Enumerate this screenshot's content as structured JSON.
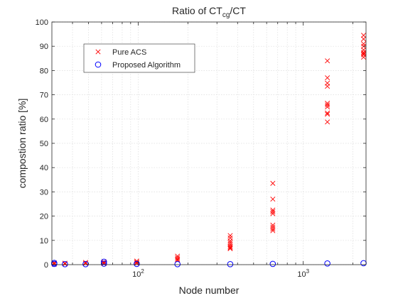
{
  "chart_data": {
    "type": "scatter",
    "title": "Ratio of CT",
    "title_sub": "cg",
    "title_tail": "/CT",
    "xlabel": "Node number",
    "ylabel": "compostion ratio [%]",
    "x_scale": "log",
    "xlim": [
      30,
      2400
    ],
    "ylim": [
      0,
      100
    ],
    "grid": true,
    "minor_grid": true,
    "legend_position": "upper-left",
    "y_ticks": [
      0,
      10,
      20,
      30,
      40,
      50,
      60,
      70,
      80,
      90,
      100
    ],
    "x_ticks": [
      {
        "value": 100,
        "base": "10",
        "exp": "2"
      },
      {
        "value": 1000,
        "base": "10",
        "exp": "3"
      }
    ],
    "series": [
      {
        "name": "Pure ACS",
        "marker": "x",
        "color": "#ff0000",
        "points": [
          {
            "x": 31,
            "y": 0.8
          },
          {
            "x": 31,
            "y": 0.4
          },
          {
            "x": 31,
            "y": 0.2
          },
          {
            "x": 36,
            "y": 0.6
          },
          {
            "x": 36,
            "y": 0.3
          },
          {
            "x": 48,
            "y": 0.9
          },
          {
            "x": 48,
            "y": 0.5
          },
          {
            "x": 62,
            "y": 1.2
          },
          {
            "x": 62,
            "y": 0.7
          },
          {
            "x": 62,
            "y": 0.4
          },
          {
            "x": 98,
            "y": 1.5
          },
          {
            "x": 98,
            "y": 1.0
          },
          {
            "x": 98,
            "y": 0.6
          },
          {
            "x": 173,
            "y": 3.5
          },
          {
            "x": 173,
            "y": 2.8
          },
          {
            "x": 173,
            "y": 2.2
          },
          {
            "x": 173,
            "y": 1.8
          },
          {
            "x": 361,
            "y": 12.0
          },
          {
            "x": 361,
            "y": 11.0
          },
          {
            "x": 361,
            "y": 9.8
          },
          {
            "x": 361,
            "y": 9.0
          },
          {
            "x": 361,
            "y": 8.2
          },
          {
            "x": 361,
            "y": 7.5
          },
          {
            "x": 361,
            "y": 7.0
          },
          {
            "x": 361,
            "y": 6.6
          },
          {
            "x": 654,
            "y": 33.5
          },
          {
            "x": 654,
            "y": 27.0
          },
          {
            "x": 654,
            "y": 22.5
          },
          {
            "x": 654,
            "y": 21.8
          },
          {
            "x": 654,
            "y": 21.0
          },
          {
            "x": 654,
            "y": 16.3
          },
          {
            "x": 654,
            "y": 15.5
          },
          {
            "x": 654,
            "y": 14.7
          },
          {
            "x": 654,
            "y": 14.0
          },
          {
            "x": 1400,
            "y": 84.0
          },
          {
            "x": 1400,
            "y": 77.0
          },
          {
            "x": 1400,
            "y": 74.8
          },
          {
            "x": 1400,
            "y": 73.5
          },
          {
            "x": 1400,
            "y": 66.5
          },
          {
            "x": 1400,
            "y": 65.8
          },
          {
            "x": 1400,
            "y": 65.0
          },
          {
            "x": 1400,
            "y": 62.5
          },
          {
            "x": 1400,
            "y": 62.0
          },
          {
            "x": 1400,
            "y": 58.8
          },
          {
            "x": 2319,
            "y": 94.5
          },
          {
            "x": 2319,
            "y": 93.0
          },
          {
            "x": 2319,
            "y": 91.0
          },
          {
            "x": 2319,
            "y": 90.0
          },
          {
            "x": 2319,
            "y": 88.5
          },
          {
            "x": 2319,
            "y": 87.5
          },
          {
            "x": 2319,
            "y": 87.0
          },
          {
            "x": 2319,
            "y": 86.5
          },
          {
            "x": 2319,
            "y": 85.5
          }
        ]
      },
      {
        "name": "Proposed Algorithm",
        "marker": "o",
        "color": "#0000ff",
        "points": [
          {
            "x": 31,
            "y": 0.3
          },
          {
            "x": 31,
            "y": 0.7
          },
          {
            "x": 36,
            "y": 0.2
          },
          {
            "x": 48,
            "y": 0.2
          },
          {
            "x": 62,
            "y": 1.2
          },
          {
            "x": 62,
            "y": 0.4
          },
          {
            "x": 98,
            "y": 0.3
          },
          {
            "x": 173,
            "y": 0.2
          },
          {
            "x": 361,
            "y": 0.2
          },
          {
            "x": 654,
            "y": 0.3
          },
          {
            "x": 1400,
            "y": 0.5
          },
          {
            "x": 2319,
            "y": 0.6
          }
        ]
      }
    ]
  }
}
